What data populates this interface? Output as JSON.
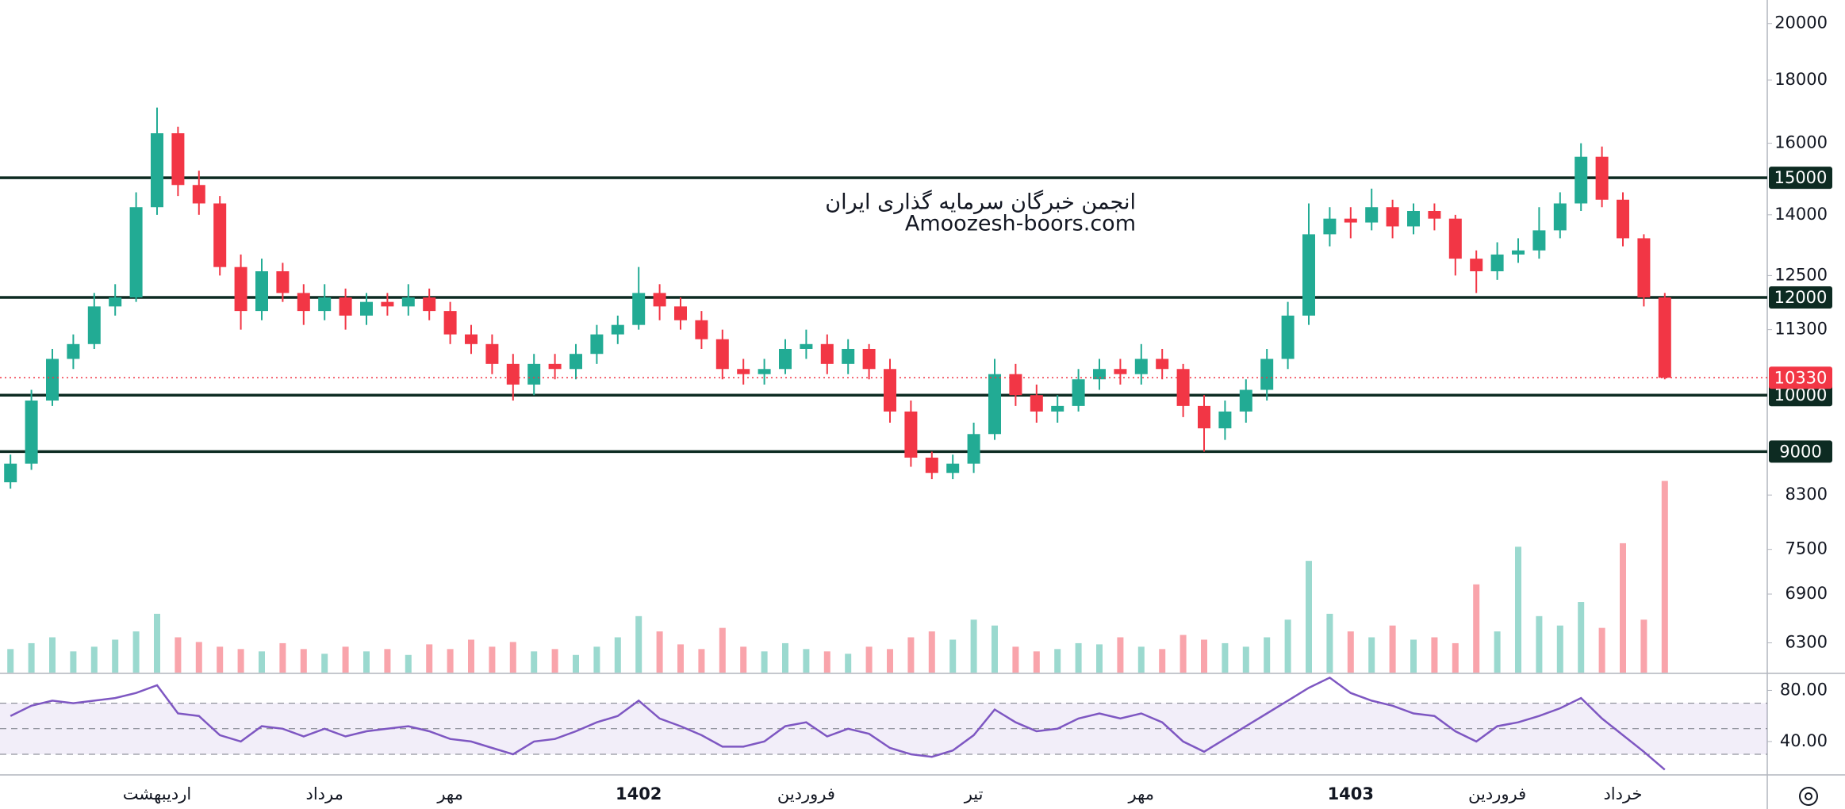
{
  "chart_data": {
    "type": "candlestick",
    "watermark": [
      "انجمن خبرگان سرمایه گذاری ایران",
      "Amoozesh-boors.com"
    ],
    "categories": [
      null,
      null,
      null,
      null,
      null,
      null,
      null,
      "اردیبهشت",
      null,
      null,
      null,
      null,
      null,
      null,
      null,
      "مرداد",
      null,
      null,
      null,
      null,
      null,
      "مهر",
      null,
      null,
      null,
      null,
      null,
      null,
      null,
      null,
      "1402",
      null,
      null,
      null,
      null,
      null,
      null,
      null,
      "فروردین",
      null,
      null,
      null,
      null,
      null,
      null,
      null,
      "تیر",
      null,
      null,
      null,
      null,
      null,
      null,
      null,
      "مهر",
      null,
      null,
      null,
      null,
      null,
      null,
      null,
      null,
      null,
      "1403",
      null,
      null,
      null,
      null,
      null,
      null,
      "فروردین",
      null,
      null,
      null,
      null,
      null,
      "خرداد",
      null,
      null
    ],
    "open": [
      8500,
      8800,
      9900,
      10700,
      11000,
      11800,
      12000,
      14200,
      16300,
      14800,
      14300,
      12700,
      11700,
      12600,
      12100,
      11700,
      12000,
      11600,
      11900,
      11800,
      12000,
      11700,
      11200,
      11000,
      10600,
      10200,
      10600,
      10500,
      10800,
      11200,
      11400,
      12100,
      11800,
      11500,
      11100,
      10500,
      10400,
      10500,
      10900,
      11000,
      10600,
      10900,
      10500,
      9700,
      8900,
      8650,
      8800,
      9300,
      10400,
      10000,
      9700,
      9800,
      10300,
      10500,
      10400,
      10700,
      10500,
      9800,
      9400,
      9700,
      10100,
      10700,
      11600,
      13500,
      13900,
      13800,
      14200,
      13700,
      14100,
      13900,
      12900,
      12600,
      13000,
      13100,
      13600,
      14300,
      15600,
      14400,
      13400,
      12000
    ],
    "high": [
      8950,
      10100,
      10900,
      11200,
      12100,
      12300,
      14600,
      17100,
      16500,
      15200,
      14500,
      13000,
      12900,
      12800,
      12300,
      12300,
      12200,
      12100,
      12100,
      12300,
      12200,
      11900,
      11400,
      11200,
      10800,
      10800,
      10800,
      11000,
      11400,
      11600,
      12700,
      12300,
      12000,
      11700,
      11300,
      10700,
      10700,
      11100,
      11300,
      11200,
      11100,
      11000,
      10700,
      9900,
      9000,
      8950,
      9500,
      10700,
      10600,
      10200,
      10000,
      10500,
      10700,
      10700,
      11000,
      10900,
      10600,
      10000,
      9900,
      10300,
      10900,
      11900,
      14300,
      14200,
      14200,
      14700,
      14400,
      14300,
      14300,
      14000,
      13100,
      13300,
      13400,
      14200,
      14600,
      16000,
      15900,
      14600,
      13500,
      12100
    ],
    "low": [
      8400,
      8700,
      9800,
      10500,
      10900,
      11600,
      11900,
      14000,
      14500,
      14000,
      12500,
      11300,
      11500,
      11900,
      11400,
      11500,
      11300,
      11400,
      11600,
      11600,
      11500,
      11000,
      10800,
      10400,
      9900,
      10000,
      10300,
      10300,
      10600,
      11000,
      11300,
      11500,
      11300,
      10900,
      10300,
      10200,
      10200,
      10400,
      10700,
      10400,
      10400,
      10300,
      9500,
      8750,
      8550,
      8550,
      8650,
      9200,
      9800,
      9500,
      9500,
      9700,
      10100,
      10200,
      10200,
      10300,
      9600,
      9000,
      9200,
      9500,
      9900,
      10500,
      11400,
      13200,
      13400,
      13600,
      13400,
      13500,
      13600,
      12500,
      12100,
      12400,
      12800,
      12900,
      13400,
      14100,
      14200,
      13200,
      11800,
      10300
    ],
    "close": [
      8800,
      9900,
      10700,
      11000,
      11800,
      12000,
      14200,
      16300,
      14800,
      14300,
      12700,
      11700,
      12600,
      12100,
      11700,
      12000,
      11600,
      11900,
      11800,
      12000,
      11700,
      11200,
      11000,
      10600,
      10200,
      10600,
      10500,
      10800,
      11200,
      11400,
      12100,
      11800,
      11500,
      11100,
      10500,
      10400,
      10500,
      10900,
      11000,
      10600,
      10900,
      10500,
      9700,
      8900,
      8650,
      8800,
      9300,
      10400,
      10000,
      9700,
      9800,
      10300,
      10500,
      10400,
      10700,
      10500,
      9800,
      9400,
      9700,
      10100,
      10700,
      11600,
      13500,
      13900,
      13800,
      14200,
      13700,
      14100,
      13900,
      12900,
      12600,
      13000,
      13100,
      13600,
      14300,
      15600,
      14400,
      13400,
      12000,
      10330
    ],
    "up_color": "#22ab94",
    "down_color": "#f23645",
    "log_scale": true,
    "ylim": [
      5960,
      20900
    ],
    "yticks": [
      20000,
      18000,
      16000,
      14000,
      12500,
      11300,
      8300,
      7500,
      6900,
      6300
    ],
    "levels": [
      15000,
      12000,
      10000,
      9000
    ],
    "level_color": "#0d2b22",
    "volume": {
      "values": [
        20,
        25,
        30,
        18,
        22,
        28,
        35,
        50,
        30,
        26,
        22,
        20,
        18,
        25,
        20,
        16,
        22,
        18,
        20,
        15,
        24,
        20,
        28,
        22,
        26,
        18,
        20,
        15,
        22,
        30,
        48,
        35,
        24,
        20,
        38,
        22,
        18,
        25,
        20,
        18,
        16,
        22,
        20,
        30,
        35,
        28,
        45,
        40,
        22,
        18,
        20,
        25,
        24,
        30,
        22,
        20,
        32,
        28,
        25,
        22,
        30,
        45,
        95,
        50,
        35,
        30,
        40,
        28,
        30,
        25,
        75,
        35,
        107,
        48,
        40,
        60,
        38,
        110,
        45,
        163
      ]
    },
    "rsi": {
      "type": "line",
      "color": "#7e57c2",
      "values": [
        60,
        68,
        72,
        70,
        72,
        74,
        78,
        84,
        62,
        60,
        45,
        40,
        52,
        50,
        44,
        50,
        44,
        48,
        50,
        52,
        48,
        42,
        40,
        35,
        30,
        40,
        42,
        48,
        55,
        60,
        72,
        58,
        52,
        45,
        36,
        36,
        40,
        52,
        55,
        44,
        50,
        46,
        35,
        30,
        28,
        33,
        45,
        65,
        55,
        48,
        50,
        58,
        62,
        58,
        62,
        55,
        40,
        32,
        42,
        52,
        62,
        72,
        82,
        90,
        78,
        72,
        68,
        62,
        60,
        48,
        40,
        52,
        55,
        60,
        66,
        74,
        58,
        45,
        32,
        18
      ],
      "ylim": [
        14.5,
        92.7
      ],
      "yticks": [
        {
          "value": 80,
          "label": "80.00"
        },
        {
          "value": 40,
          "label": "40.00"
        }
      ],
      "bands": [
        30,
        50,
        70
      ]
    }
  }
}
